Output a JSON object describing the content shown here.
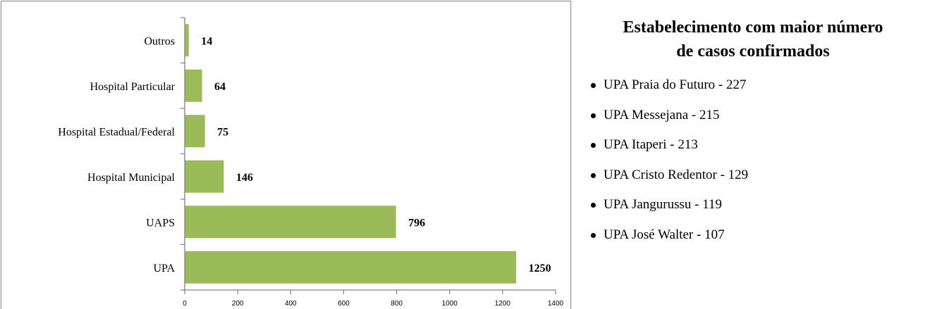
{
  "chart_data": {
    "type": "bar",
    "orientation": "horizontal",
    "categories": [
      "Outros",
      "Hospital Particular",
      "Hospital Estadual/Federal",
      "Hospital Municipal",
      "UAPS",
      "UPA"
    ],
    "values": [
      14,
      64,
      75,
      146,
      796,
      1250
    ],
    "value_labels": [
      "14",
      "64",
      "75",
      "146",
      "796",
      "1250"
    ],
    "x_ticks": [
      "0",
      "200",
      "400",
      "600",
      "800",
      "1000",
      "1200",
      "1400"
    ],
    "xlim": [
      0,
      1400
    ],
    "grid": false,
    "legend": "none",
    "bar_color": "#9BBB59"
  },
  "side_panel": {
    "title_line1": "Estabelecimento com maior  número",
    "title_line2": "de casos confirmados",
    "items": [
      "UPA Praia do Futuro - 227",
      "UPA Messejana - 215",
      "UPA Itaperi - 213",
      "UPA Cristo Redentor - 129",
      "UPA Jangurussu - 119",
      "UPA José Walter - 107"
    ]
  }
}
